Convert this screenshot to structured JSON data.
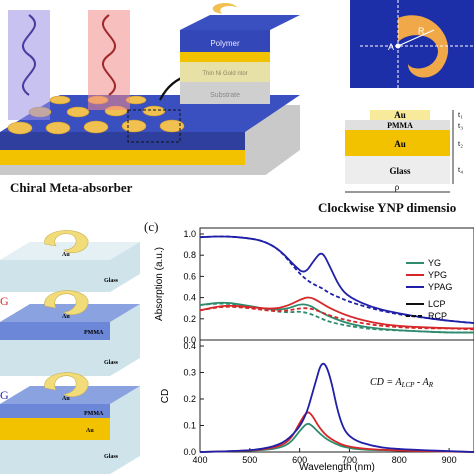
{
  "figure": {
    "caption_main": "Chiral Meta-absorber",
    "caption_dim": "Clockwise YNP dimensio",
    "panel_c_label": "(c)",
    "inset_layers": {
      "polymer": "Polymer",
      "spacer": "Thin Ni Gold ntor",
      "substrate": "Substrate"
    },
    "dimension_labels": {
      "A": "A",
      "R": "R"
    },
    "cross_section": {
      "au_top": "Au",
      "pmma": "PMMA",
      "au_mid": "Au",
      "glass": "Glass",
      "t1": "t₁",
      "t2": "t₂",
      "t3": "t₃",
      "t4": "t₄",
      "rho": "ρ"
    },
    "samples": [
      {
        "au": "Au",
        "glass": "Glass",
        "pmma": "",
        "marker": ""
      },
      {
        "au": "Au",
        "pmma": "PMMA",
        "glass": "Glass",
        "marker": "G"
      },
      {
        "au": "Au",
        "pmma": "PMMA",
        "au2": "Au",
        "glass": "Glass",
        "marker": "G"
      }
    ],
    "equation": "CD = A",
    "eq_sub1": "LCP",
    "eq_minus": " - A",
    "eq_sub2": "R"
  },
  "colors": {
    "YG": "#2e8b6e",
    "YPG": "#d62728",
    "YPAG": "#1f1fa8"
  },
  "chart_data": [
    {
      "type": "line",
      "ylabel": "Absorption (a.u.)",
      "xlabel": "",
      "xlim": [
        400,
        950
      ],
      "ylim": [
        0,
        1.0
      ],
      "yticks": [
        "0.0",
        "0.2",
        "0.4",
        "0.6",
        "0.8",
        "1.0"
      ],
      "legend_series": [
        {
          "name": "YG",
          "color": "#2e8b6e"
        },
        {
          "name": "YPG",
          "color": "#d62728"
        },
        {
          "name": "YPAG",
          "color": "#1f1fa8"
        }
      ],
      "legend_styles": [
        {
          "name": "LCP",
          "dash": false
        },
        {
          "name": "RCP",
          "dash": true
        }
      ],
      "series": [
        {
          "name": "YG",
          "style": "LCP",
          "x": [
            400,
            450,
            500,
            550,
            580,
            600,
            620,
            640,
            660,
            700,
            750,
            800,
            850,
            900,
            950
          ],
          "y": [
            0.33,
            0.36,
            0.32,
            0.28,
            0.3,
            0.34,
            0.33,
            0.27,
            0.22,
            0.15,
            0.11,
            0.09,
            0.08,
            0.07,
            0.07
          ]
        },
        {
          "name": "YG",
          "style": "RCP",
          "x": [
            400,
            450,
            500,
            550,
            580,
            600,
            620,
            640,
            660,
            700,
            750,
            800,
            850,
            900,
            950
          ],
          "y": [
            0.33,
            0.35,
            0.31,
            0.27,
            0.26,
            0.27,
            0.25,
            0.21,
            0.17,
            0.13,
            0.1,
            0.09,
            0.08,
            0.07,
            0.07
          ]
        },
        {
          "name": "YPG",
          "style": "LCP",
          "x": [
            400,
            450,
            500,
            550,
            580,
            600,
            620,
            640,
            660,
            700,
            750,
            800,
            850,
            900,
            950
          ],
          "y": [
            0.28,
            0.33,
            0.31,
            0.29,
            0.33,
            0.38,
            0.41,
            0.36,
            0.3,
            0.22,
            0.16,
            0.13,
            0.12,
            0.11,
            0.11
          ]
        },
        {
          "name": "YPG",
          "style": "RCP",
          "x": [
            400,
            450,
            500,
            550,
            580,
            600,
            620,
            640,
            660,
            700,
            750,
            800,
            850,
            900,
            950
          ],
          "y": [
            0.28,
            0.32,
            0.3,
            0.27,
            0.28,
            0.3,
            0.3,
            0.27,
            0.23,
            0.18,
            0.14,
            0.12,
            0.11,
            0.11,
            0.1
          ]
        },
        {
          "name": "YPAG",
          "style": "LCP",
          "x": [
            400,
            450,
            500,
            530,
            560,
            590,
            610,
            630,
            645,
            660,
            680,
            700,
            750,
            800,
            850,
            900,
            950
          ],
          "y": [
            0.97,
            0.98,
            0.96,
            0.93,
            0.85,
            0.7,
            0.62,
            0.76,
            0.84,
            0.7,
            0.5,
            0.4,
            0.3,
            0.25,
            0.21,
            0.18,
            0.16
          ]
        },
        {
          "name": "YPAG",
          "style": "RCP",
          "x": [
            400,
            450,
            500,
            530,
            560,
            590,
            610,
            630,
            645,
            660,
            680,
            700,
            750,
            800,
            850,
            900,
            950
          ],
          "y": [
            0.97,
            0.98,
            0.96,
            0.93,
            0.85,
            0.68,
            0.58,
            0.52,
            0.49,
            0.44,
            0.4,
            0.36,
            0.29,
            0.24,
            0.21,
            0.18,
            0.16
          ]
        }
      ]
    },
    {
      "type": "line",
      "ylabel": "CD",
      "xlabel": "Wavelength (nm)",
      "xlim": [
        400,
        950
      ],
      "ylim": [
        0,
        0.4
      ],
      "xticks": [
        "400",
        "500",
        "600",
        "700",
        "800",
        "900"
      ],
      "yticks": [
        "0.0",
        "0.1",
        "0.2",
        "0.3",
        "0.4"
      ],
      "series": [
        {
          "name": "YG",
          "x": [
            400,
            500,
            550,
            580,
            600,
            615,
            625,
            640,
            660,
            700,
            800,
            950
          ],
          "y": [
            0,
            0.005,
            0.01,
            0.03,
            0.08,
            0.11,
            0.1,
            0.07,
            0.04,
            0.01,
            0.005,
            0
          ]
        },
        {
          "name": "YPG",
          "x": [
            400,
            500,
            550,
            580,
            600,
            615,
            625,
            640,
            660,
            700,
            800,
            950
          ],
          "y": [
            0,
            0.005,
            0.015,
            0.04,
            0.11,
            0.155,
            0.14,
            0.09,
            0.05,
            0.015,
            0.005,
            0
          ]
        },
        {
          "name": "YPAG",
          "x": [
            400,
            500,
            550,
            580,
            610,
            630,
            645,
            660,
            680,
            700,
            750,
            800,
            950
          ],
          "y": [
            0,
            0.005,
            0.02,
            0.05,
            0.12,
            0.25,
            0.35,
            0.3,
            0.12,
            0.05,
            0.02,
            0.01,
            0
          ]
        }
      ]
    }
  ]
}
